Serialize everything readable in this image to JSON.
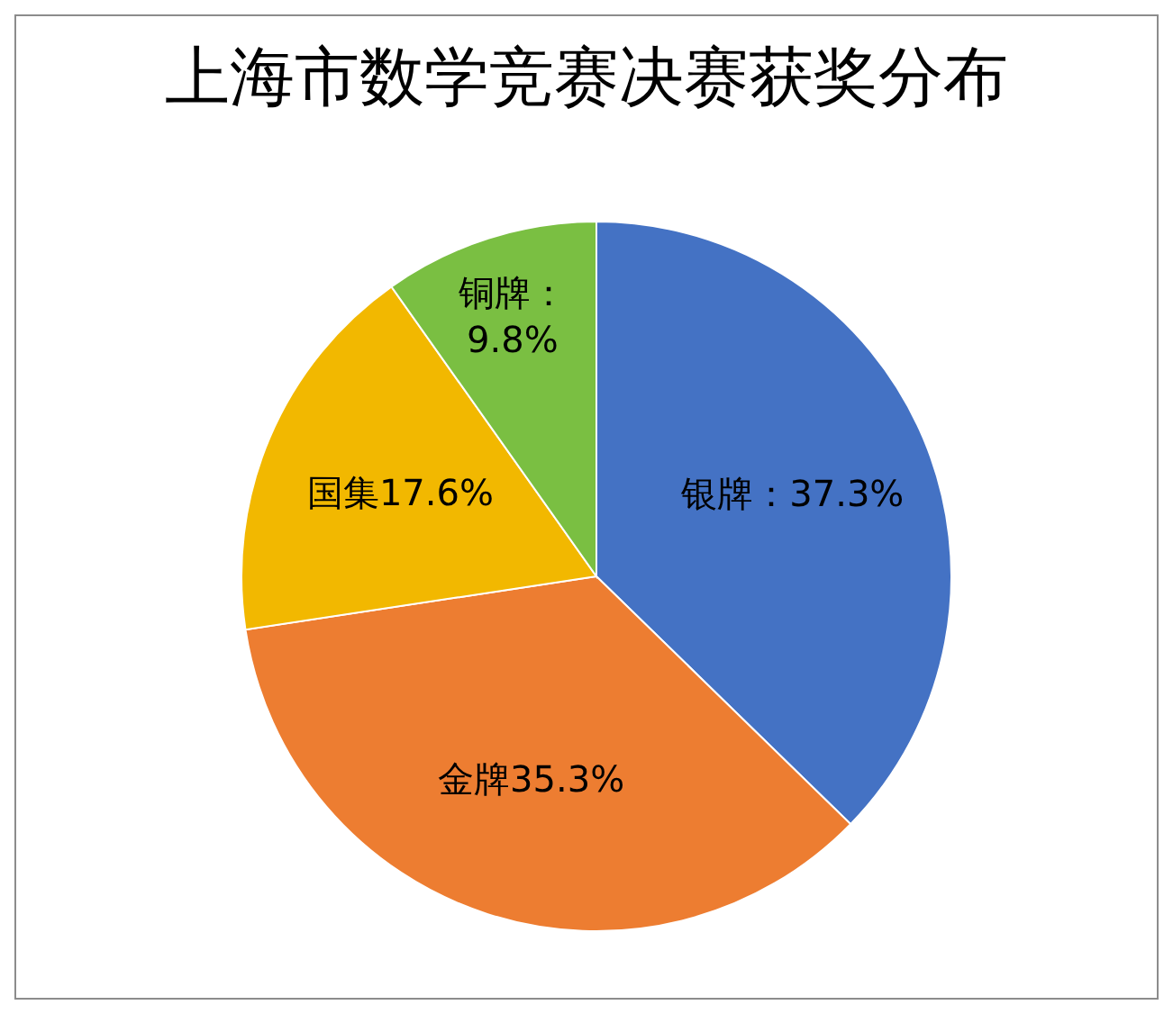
{
  "chart_data": {
    "type": "pie",
    "title": "上海市数学竞赛决赛获奖分布",
    "categories": [
      "银牌",
      "金牌",
      "国集",
      "铜牌"
    ],
    "values": [
      37.3,
      35.3,
      17.6,
      9.8
    ],
    "value_labels": [
      "：37.3%",
      "35.3%",
      "17.6%",
      "：9.8%"
    ],
    "colors": [
      "#4472c4",
      "#ed7d31",
      "#f2b800",
      "#7abf42"
    ],
    "data_labels": true,
    "legend": false
  }
}
